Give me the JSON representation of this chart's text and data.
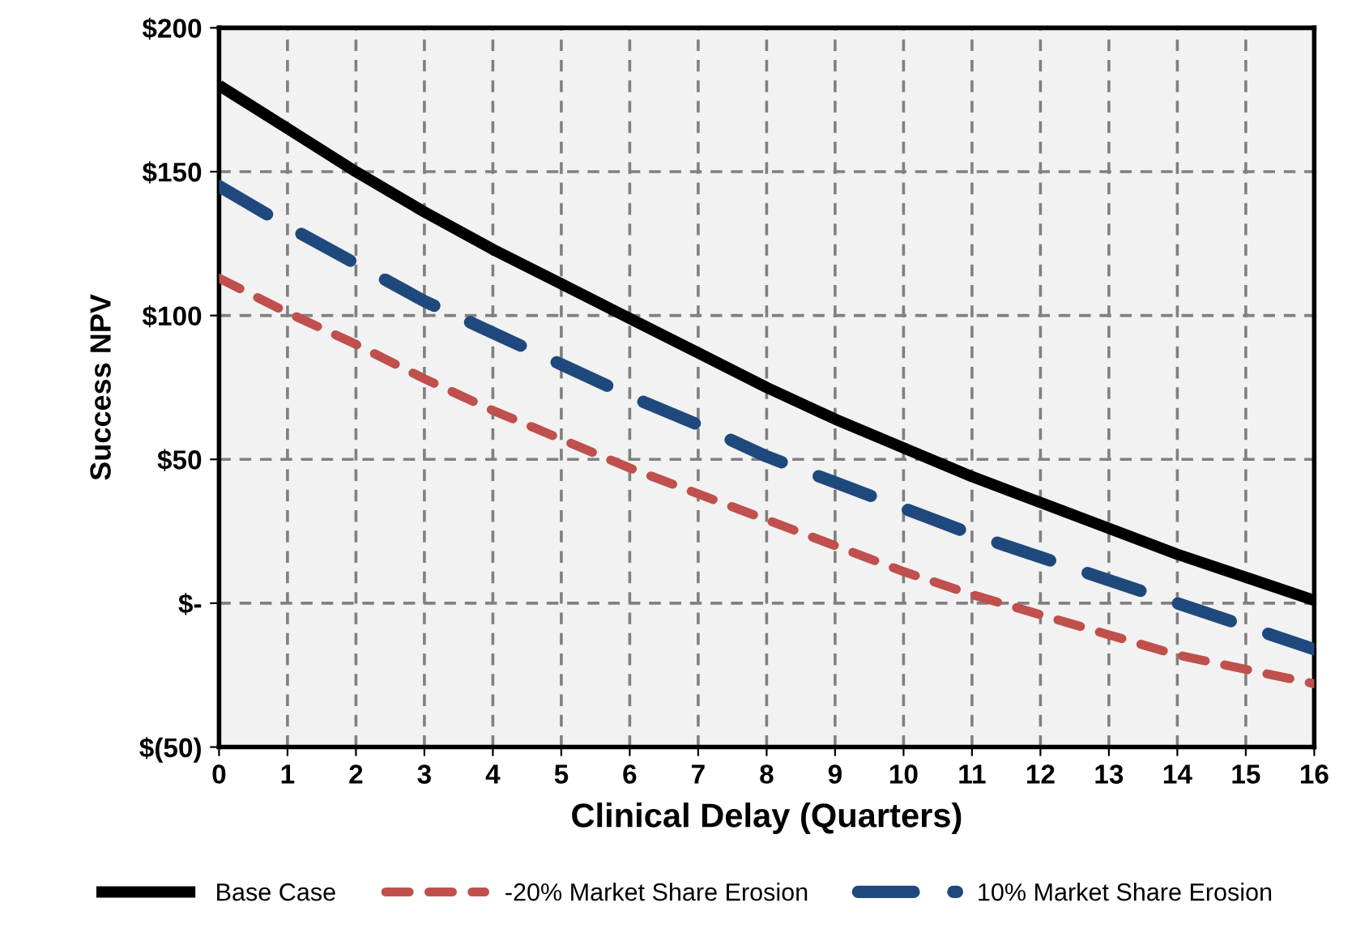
{
  "chart_data": {
    "type": "line",
    "xlabel": "Clinical Delay (Quarters)",
    "ylabel": "Success NPV",
    "x": [
      0,
      1,
      2,
      3,
      4,
      5,
      6,
      7,
      8,
      9,
      10,
      11,
      12,
      13,
      14,
      15,
      16
    ],
    "series": [
      {
        "name": "Base Case",
        "color": "#000000",
        "line_style": "solid",
        "values": [
          180,
          165,
          150,
          136,
          123,
          111,
          99,
          87,
          75,
          64,
          54,
          44,
          35,
          26,
          17,
          9,
          1
        ]
      },
      {
        "name": "-20% Market Share Erosion",
        "color": "#c0504d",
        "line_style": "dashed",
        "values": [
          113,
          101,
          90,
          78,
          67,
          57,
          47,
          38,
          29,
          20,
          11,
          3,
          -4,
          -11,
          -18,
          -23,
          -28
        ]
      },
      {
        "name": "10% Market Share Erosion",
        "color": "#1f497d",
        "line_style": "dashed",
        "values": [
          145,
          131,
          118,
          105,
          94,
          83,
          72,
          62,
          51,
          42,
          33,
          24,
          16,
          8,
          0,
          -8,
          -16
        ]
      }
    ],
    "xlim": [
      0,
      16
    ],
    "xticks": [
      0,
      1,
      2,
      3,
      4,
      5,
      6,
      7,
      8,
      9,
      10,
      11,
      12,
      13,
      14,
      15,
      16
    ],
    "ylim": [
      -50,
      200
    ],
    "yticks": [
      {
        "value": -50,
        "label": "$(50)"
      },
      {
        "value": 0,
        "label": "$-"
      },
      {
        "value": 50,
        "label": "$50"
      },
      {
        "value": 100,
        "label": "$100"
      },
      {
        "value": 150,
        "label": "$150"
      },
      {
        "value": 200,
        "label": "$200"
      }
    ],
    "grid": true,
    "legend": "bottom",
    "marker": "none"
  }
}
